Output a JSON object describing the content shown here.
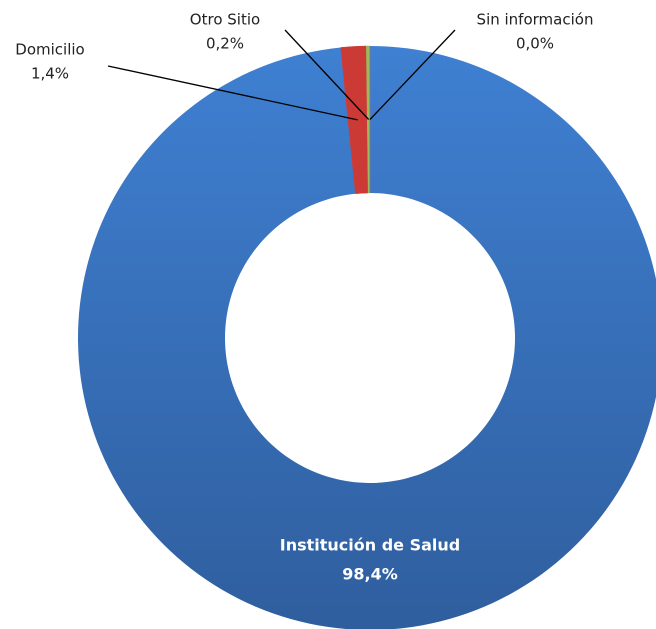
{
  "chart_data": {
    "type": "donut",
    "categories": [
      "Institución de Salud",
      "Domicilio",
      "Otro Sitio",
      "Sin información"
    ],
    "values": [
      98.4,
      1.4,
      0.2,
      0.0
    ],
    "value_labels": [
      "98,4%",
      "1,4%",
      "0,2%",
      "0,0%"
    ],
    "colors": [
      "#3a77c6",
      "#cc3a36",
      "#9bbb59",
      "#8064a2"
    ]
  }
}
